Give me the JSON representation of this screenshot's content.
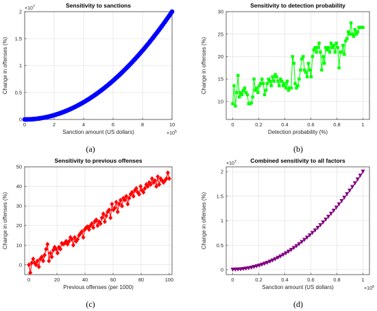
{
  "chart_data": [
    {
      "id": "a",
      "type": "scatter",
      "caption": "(a)",
      "title": "Sensitivity to sanctions",
      "xlabel": "Sanction amount (US dollars)",
      "ylabel": "Change in offenses (%)",
      "x_exponent": "×10",
      "x_exponent_power": "5",
      "y_exponent": "×10",
      "y_exponent_power": "7",
      "xlim": [
        0,
        1000000
      ],
      "ylim": [
        0,
        20000000
      ],
      "xticks": [
        0,
        200000,
        400000,
        600000,
        800000,
        1000000
      ],
      "xtick_labels": [
        "0",
        "2",
        "4",
        "6",
        "8",
        "10"
      ],
      "yticks": [
        0,
        5000000,
        10000000,
        15000000,
        20000000
      ],
      "ytick_labels": [
        "0",
        "0.5",
        "1",
        "1.5",
        "2"
      ],
      "color": "#0000ff",
      "marker": "circle",
      "grid": true,
      "series": [
        {
          "x": [
            0,
            10000,
            20000,
            30000,
            40000,
            50000,
            60000,
            70000,
            80000,
            90000,
            100000,
            110000,
            120000,
            130000,
            140000,
            150000,
            160000,
            170000,
            180000,
            190000,
            200000,
            210000,
            220000,
            230000,
            240000,
            250000,
            260000,
            270000,
            280000,
            290000,
            300000,
            310000,
            320000,
            330000,
            340000,
            350000,
            360000,
            370000,
            380000,
            390000,
            400000,
            410000,
            420000,
            430000,
            440000,
            450000,
            460000,
            470000,
            480000,
            490000,
            500000,
            510000,
            520000,
            530000,
            540000,
            550000,
            560000,
            570000,
            580000,
            590000,
            600000,
            610000,
            620000,
            630000,
            640000,
            650000,
            660000,
            670000,
            680000,
            690000,
            700000,
            710000,
            720000,
            730000,
            740000,
            750000,
            760000,
            770000,
            780000,
            790000,
            800000,
            810000,
            820000,
            830000,
            840000,
            850000,
            860000,
            870000,
            880000,
            890000,
            900000,
            910000,
            920000,
            930000,
            940000,
            950000,
            960000,
            970000,
            980000,
            990000,
            1000000
          ],
          "y": [
            0,
            2000,
            8000,
            18000,
            32000,
            50000,
            72000,
            98000,
            128000,
            162000,
            200000,
            242000,
            288000,
            338000,
            392000,
            450000,
            512000,
            578000,
            648000,
            722000,
            800000,
            882000,
            968000,
            1058000,
            1152000,
            1250000,
            1352000,
            1458000,
            1568000,
            1682000,
            1800000,
            1922000,
            2048000,
            2178000,
            2312000,
            2450000,
            2592000,
            2738000,
            2888000,
            3042000,
            3200000,
            3362000,
            3528000,
            3698000,
            3872000,
            4050000,
            4232000,
            4418000,
            4608000,
            4802000,
            5000000,
            5202000,
            5408000,
            5618000,
            5832000,
            6050000,
            6272000,
            6498000,
            6728000,
            6962000,
            7200000,
            7442000,
            7688000,
            7938000,
            8192000,
            8450000,
            8712000,
            8978000,
            9248000,
            9522000,
            9800000,
            10082000,
            10368000,
            10658000,
            10952000,
            11250000,
            11552000,
            11858000,
            12168000,
            12482000,
            12800000,
            13122000,
            13448000,
            13778000,
            14112000,
            14450000,
            14792000,
            15138000,
            15488000,
            15842000,
            16200000,
            16562000,
            16928000,
            17298000,
            17672000,
            18050000,
            18432000,
            18818000,
            19208000,
            19602000,
            20000000
          ]
        }
      ]
    },
    {
      "id": "b",
      "type": "line",
      "caption": "(b)",
      "title": "Sensitivity to detection probability",
      "xlabel": "Detection probability (%)",
      "ylabel": "Change in offenses (%)",
      "xlim": [
        -0.05,
        1.05
      ],
      "ylim": [
        6,
        30
      ],
      "xticks": [
        0,
        0.2,
        0.4,
        0.6,
        0.8,
        1
      ],
      "xtick_labels": [
        "0",
        "0.2",
        "0.4",
        "0.6",
        "0.8",
        "1"
      ],
      "yticks": [
        10,
        15,
        20,
        25,
        30
      ],
      "ytick_labels": [
        "10",
        "15",
        "20",
        "25",
        "30"
      ],
      "color": "#00ff00",
      "marker": "square",
      "grid": true,
      "series": [
        {
          "x": [
            0,
            0.0102,
            0.0204,
            0.0306,
            0.0408,
            0.051,
            0.0612,
            0.0714,
            0.0816,
            0.0918,
            0.102,
            0.1122,
            0.1224,
            0.1327,
            0.1429,
            0.1531,
            0.1633,
            0.1735,
            0.1837,
            0.1939,
            0.2041,
            0.2143,
            0.2245,
            0.2347,
            0.2449,
            0.2551,
            0.2653,
            0.2755,
            0.2857,
            0.2959,
            0.3061,
            0.3163,
            0.3265,
            0.3367,
            0.3469,
            0.3571,
            0.3673,
            0.3776,
            0.3878,
            0.398,
            0.4082,
            0.4184,
            0.4286,
            0.4388,
            0.449,
            0.4592,
            0.4694,
            0.4796,
            0.4898,
            0.5,
            0.5102,
            0.5204,
            0.5306,
            0.5408,
            0.551,
            0.5612,
            0.5714,
            0.5816,
            0.5918,
            0.602,
            0.6122,
            0.6224,
            0.6327,
            0.6429,
            0.6531,
            0.6633,
            0.6735,
            0.6837,
            0.6939,
            0.7041,
            0.7143,
            0.7245,
            0.7347,
            0.7449,
            0.7551,
            0.7653,
            0.7755,
            0.7857,
            0.7959,
            0.8061,
            0.8163,
            0.8265,
            0.8367,
            0.8469,
            0.8571,
            0.8673,
            0.8776,
            0.8878,
            0.898,
            0.9082,
            0.9184,
            0.9286,
            0.9388,
            0.949,
            0.9592,
            0.9694,
            0.9796,
            0.9898,
            1
          ],
          "y": [
            9.5,
            13.5,
            9,
            12,
            15.8,
            11,
            12,
            11.5,
            12.5,
            13,
            12,
            11.5,
            9.5,
            9.5,
            9.7,
            11,
            15,
            12.5,
            13,
            12,
            13.5,
            14,
            15,
            14,
            11.5,
            12.5,
            14,
            15,
            14.5,
            13.5,
            15.5,
            14.5,
            16,
            15.5,
            14.5,
            13.5,
            15,
            14.5,
            13.5,
            14,
            13,
            14.5,
            12.5,
            13,
            13,
            20,
            18.5,
            14,
            13,
            13.5,
            15,
            17,
            19.5,
            20,
            17,
            16.5,
            15.5,
            18.5,
            17,
            15.5,
            20,
            21.5,
            22,
            21,
            22,
            23,
            21,
            17,
            20,
            18.5,
            22,
            21.5,
            22,
            21,
            23,
            22,
            22.5,
            21,
            23,
            22,
            17.5,
            21,
            21,
            22.5,
            20.5,
            23.5,
            24,
            25.5,
            25,
            27.5,
            25,
            24.5,
            26,
            25,
            25.5,
            26.5,
            26.5,
            26.5,
            26.5
          ]
        }
      ]
    },
    {
      "id": "c",
      "type": "line",
      "caption": "(c)",
      "title": "Sensitivity to previous offenses",
      "xlabel": "Previous offenses (per 1000)",
      "ylabel": "Change in offenses (%)",
      "xlim": [
        -3,
        102
      ],
      "ylim": [
        -5,
        50
      ],
      "xticks": [
        0,
        20,
        40,
        60,
        80,
        100
      ],
      "xtick_labels": [
        "0",
        "20",
        "40",
        "60",
        "80",
        "100"
      ],
      "yticks": [
        0,
        10,
        20,
        30,
        40,
        50
      ],
      "ytick_labels": [
        "0",
        "10",
        "20",
        "30",
        "40",
        "50"
      ],
      "color": "#ff0000",
      "marker": "diamond",
      "grid": true,
      "series": [
        {
          "x": [
            0,
            1.02,
            2.04,
            3.06,
            4.08,
            5.1,
            6.12,
            7.14,
            8.16,
            9.18,
            10.2,
            11.22,
            12.24,
            13.27,
            14.29,
            15.31,
            16.33,
            17.35,
            18.37,
            19.39,
            20.41,
            21.43,
            22.45,
            23.47,
            24.49,
            25.51,
            26.53,
            27.55,
            28.57,
            29.59,
            30.61,
            31.63,
            32.65,
            33.67,
            34.69,
            35.71,
            36.73,
            37.76,
            38.78,
            39.8,
            40.82,
            41.84,
            42.86,
            43.88,
            44.9,
            45.92,
            46.94,
            47.96,
            48.98,
            50,
            51.02,
            52.04,
            53.06,
            54.08,
            55.1,
            56.12,
            57.14,
            58.16,
            59.18,
            60.2,
            61.22,
            62.24,
            63.27,
            64.29,
            65.31,
            66.33,
            67.35,
            68.37,
            69.39,
            70.41,
            71.43,
            72.45,
            73.47,
            74.49,
            75.51,
            76.53,
            77.55,
            78.57,
            79.59,
            80.61,
            81.63,
            82.65,
            83.67,
            84.69,
            85.71,
            86.73,
            87.76,
            88.78,
            89.8,
            90.82,
            91.84,
            92.86,
            93.88,
            94.9,
            95.92,
            96.94,
            97.96,
            98.98,
            100
          ],
          "y": [
            0,
            -4,
            1,
            3,
            1,
            0,
            2,
            -1,
            3,
            4,
            2,
            5,
            8,
            10.5,
            2,
            6,
            4,
            7.5,
            9,
            8,
            6,
            9,
            8,
            11,
            10.5,
            11,
            12,
            10.5,
            12,
            14,
            13,
            10,
            14,
            12,
            13,
            15,
            16,
            17,
            14,
            18,
            19,
            19.5,
            18,
            20,
            21,
            19,
            22,
            23,
            20,
            22,
            21,
            24,
            26,
            22,
            25,
            27,
            28,
            24,
            31,
            28,
            29,
            32,
            27,
            31,
            33,
            30,
            34,
            33,
            35,
            31,
            34,
            36,
            37,
            35,
            38,
            39,
            37,
            36,
            40,
            38,
            37,
            39,
            41,
            40,
            42,
            41,
            44,
            42,
            43,
            40,
            45,
            41,
            44,
            43,
            42,
            43,
            44,
            47,
            44
          ]
        }
      ]
    },
    {
      "id": "d",
      "type": "scatter",
      "caption": "(d)",
      "title": "Combined sensitivity to all factors",
      "xlabel": "Sanction amount (US dollars)",
      "ylabel": "Change in offenses (%)",
      "x_exponent": "×10",
      "x_exponent_power": "6",
      "y_exponent": "×10",
      "y_exponent_power": "7",
      "xlim": [
        -0.05,
        1.05
      ],
      "ylim": [
        -0.1,
        2.1
      ],
      "xticks": [
        0,
        0.2,
        0.4,
        0.6,
        0.8,
        1
      ],
      "xtick_labels": [
        "0",
        "0.2",
        "0.4",
        "0.6",
        "0.8",
        "1"
      ],
      "yticks": [
        0,
        0.5,
        1,
        1.5,
        2
      ],
      "ytick_labels": [
        "0",
        "0.5",
        "1",
        "1.5",
        "2"
      ],
      "color": "#800080",
      "marker": "triangle",
      "grid": true,
      "series": [
        {
          "x": [
            0,
            0.0204,
            0.0408,
            0.0612,
            0.0816,
            0.102,
            0.1224,
            0.1429,
            0.1633,
            0.1837,
            0.2041,
            0.2245,
            0.2449,
            0.2653,
            0.2857,
            0.3061,
            0.3265,
            0.3469,
            0.3673,
            0.3878,
            0.4082,
            0.4286,
            0.449,
            0.4694,
            0.4898,
            0.5102,
            0.5306,
            0.551,
            0.5714,
            0.5918,
            0.6122,
            0.6327,
            0.6531,
            0.6735,
            0.6939,
            0.7143,
            0.7347,
            0.7551,
            0.7755,
            0.7959,
            0.8163,
            0.8367,
            0.8571,
            0.8776,
            0.898,
            0.9184,
            0.9388,
            0.9592,
            0.9796,
            1
          ],
          "y": [
            0,
            0.0008,
            0.0033,
            0.0075,
            0.0133,
            0.0208,
            0.03,
            0.0408,
            0.0533,
            0.0675,
            0.0833,
            0.1008,
            0.12,
            0.1408,
            0.1633,
            0.1874,
            0.2132,
            0.2407,
            0.2698,
            0.3007,
            0.3332,
            0.3674,
            0.4032,
            0.4407,
            0.4798,
            0.5206,
            0.5631,
            0.6072,
            0.653,
            0.7005,
            0.7496,
            0.8006,
            0.853,
            0.9072,
            0.963,
            1.0204,
            1.0795,
            1.1404,
            1.2028,
            1.267,
            1.3327,
            1.4001,
            1.4692,
            1.5403,
            1.6127,
            1.6869,
            1.7627,
            1.8401,
            1.9192,
            2
          ]
        }
      ]
    }
  ]
}
